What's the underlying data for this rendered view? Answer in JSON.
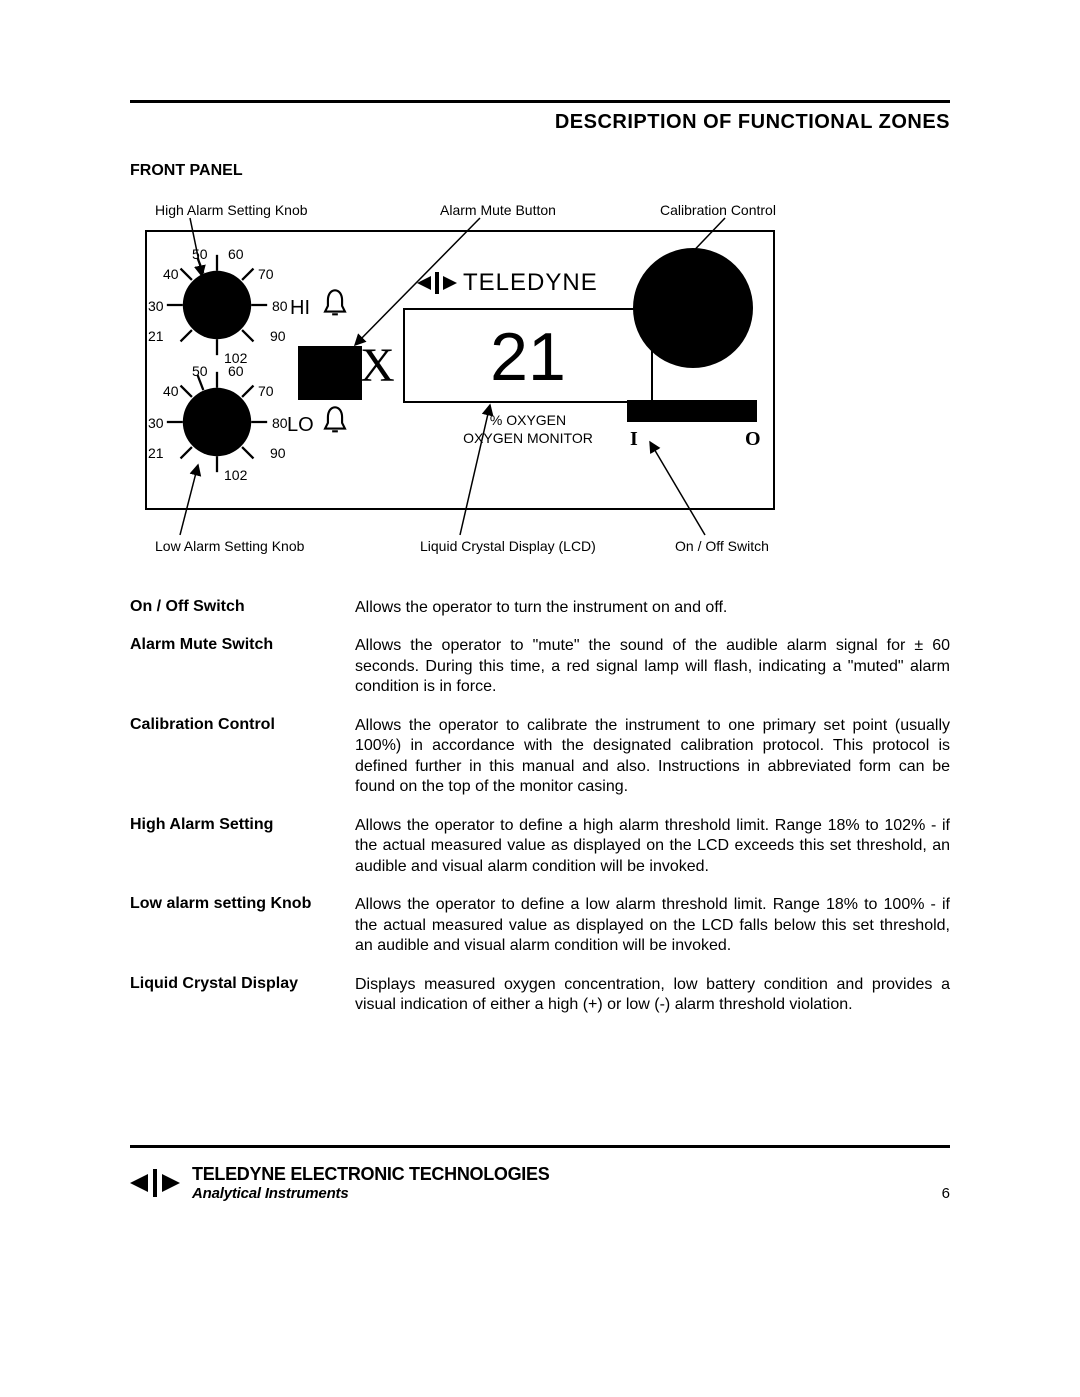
{
  "header": {
    "section_title": "DESCRIPTION OF FUNCTIONAL ZONES",
    "subtitle": "FRONT PANEL"
  },
  "diagram": {
    "callouts": {
      "high_alarm_knob": "High Alarm Setting Knob",
      "alarm_mute_button": "Alarm Mute Button",
      "calibration_control": "Calibration Control",
      "low_alarm_knob": "Low Alarm Setting Knob",
      "lcd": "Liquid Crystal Display (LCD)",
      "on_off_switch": "On / Off Switch"
    },
    "dial_ticks": [
      "50",
      "60",
      "40",
      "70",
      "30",
      "80",
      "21",
      "90",
      "102"
    ],
    "hi_label": "HI",
    "lo_label": "LO",
    "brand": "TELEDYNE",
    "mute_x": "X",
    "lcd_value": "21",
    "lcd_sub1": "% OXYGEN",
    "lcd_sub2": "OXYGEN MONITOR",
    "switch_on": "I",
    "switch_off": "O",
    "colors": {
      "line": "#000000",
      "fill": "#000000",
      "bg": "#ffffff"
    }
  },
  "controls": [
    {
      "term": "On / Off Switch",
      "desc": "Allows the operator to turn the instrument on and off."
    },
    {
      "term": "Alarm Mute Switch",
      "desc": "Allows the operator to \"mute\" the sound of the audible alarm signal for ± 60 seconds. During this time, a red signal lamp will flash, indicating a \"muted\" alarm condition is in force."
    },
    {
      "term": "Calibration Control",
      "desc": "Allows the operator to calibrate the instrument to one primary set point (usually 100%) in accordance with the designated calibration protocol. This protocol is defined further in this manual and also. Instructions in abbreviated form can be found on the top of the monitor casing."
    },
    {
      "term": "High Alarm Setting",
      "desc": "Allows the operator to define a high alarm threshold limit. Range 18% to 102% - if the actual measured value as displayed on the LCD exceeds this set threshold, an audible and visual alarm condition will be invoked."
    },
    {
      "term": "Low alarm setting Knob",
      "desc": "Allows the operator to define a low alarm threshold limit. Range 18% to 100% - if the actual measured value as displayed on the LCD falls below this set threshold, an audible and visual alarm condition will be invoked."
    },
    {
      "term": "Liquid Crystal Display",
      "desc": "Displays measured oxygen concentration, low battery condition and provides a visual indication of either a high (+) or low (-) alarm threshold violation."
    }
  ],
  "footer": {
    "line1": "TELEDYNE ELECTRONIC TECHNOLOGIES",
    "line2": "Analytical Instruments",
    "page": "6"
  }
}
